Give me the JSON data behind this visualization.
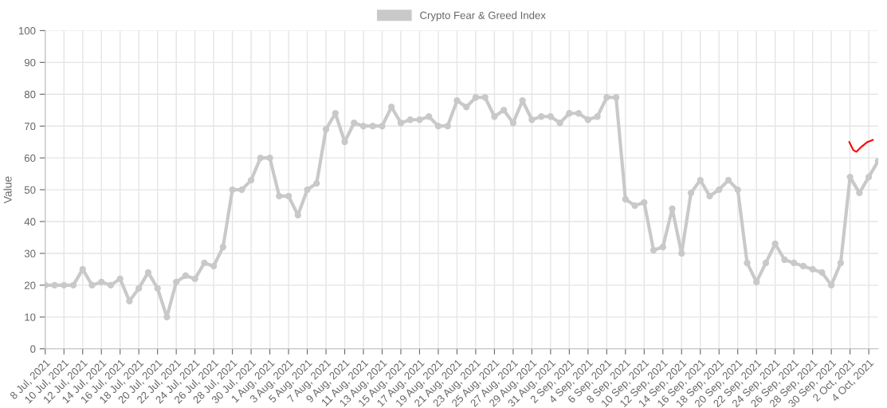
{
  "chart_data": {
    "type": "line",
    "ylabel": "Value",
    "categories": [
      "8 Jul, 2021",
      null,
      "10 Jul, 2021",
      null,
      "12 Jul, 2021",
      null,
      "14 Jul, 2021",
      null,
      "16 Jul, 2021",
      null,
      "18 Jul, 2021",
      null,
      "20 Jul, 2021",
      null,
      "22 Jul, 2021",
      null,
      "24 Jul, 2021",
      null,
      "26 Jul, 2021",
      null,
      "28 Jul, 2021",
      null,
      "30 Jul, 2021",
      null,
      "1 Aug, 2021",
      null,
      "3 Aug, 2021",
      null,
      "5 Aug, 2021",
      null,
      "7 Aug, 2021",
      null,
      "9 Aug, 2021",
      null,
      "11 Aug, 2021",
      null,
      "13 Aug, 2021",
      null,
      "15 Aug, 2021",
      null,
      "17 Aug, 2021",
      null,
      "19 Aug, 2021",
      null,
      "21 Aug, 2021",
      null,
      "23 Aug, 2021",
      null,
      "25 Aug, 2021",
      null,
      "27 Aug, 2021",
      null,
      "29 Aug, 2021",
      null,
      "31 Aug, 2021",
      null,
      "2 Sep, 2021",
      null,
      "4 Sep, 2021",
      null,
      "6 Sep, 2021",
      null,
      "8 Sep, 2021",
      null,
      "10 Sep, 2021",
      null,
      "12 Sep, 2021",
      null,
      "14 Sep, 2021",
      null,
      "16 Sep, 2021",
      null,
      "18 Sep, 2021",
      null,
      "20 Sep, 2021",
      null,
      "22 Sep, 2021",
      null,
      "24 Sep, 2021",
      null,
      "26 Sep, 2021",
      null,
      "28 Sep, 2021",
      null,
      "30 Sep, 2021",
      null,
      "2 Oct, 2021",
      null,
      "4 Oct, 2021",
      null
    ],
    "series": [
      {
        "name": "Crypto Fear & Greed Index",
        "color": "#c9c9c9",
        "values": [
          20,
          20,
          20,
          20,
          25,
          20,
          21,
          20,
          22,
          15,
          19,
          24,
          19,
          10,
          21,
          23,
          22,
          27,
          26,
          32,
          50,
          50,
          53,
          60,
          60,
          48,
          48,
          42,
          50,
          52,
          69,
          74,
          65,
          71,
          70,
          70,
          70,
          76,
          71,
          72,
          72,
          73,
          70,
          70,
          78,
          76,
          79,
          79,
          73,
          75,
          71,
          78,
          72,
          73,
          73,
          71,
          74,
          74,
          72,
          73,
          79,
          79,
          47,
          45,
          46,
          31,
          32,
          44,
          30,
          49,
          53,
          48,
          50,
          53,
          50,
          27,
          21,
          27,
          33,
          28,
          27,
          26,
          25,
          24,
          20,
          27,
          54,
          49,
          54,
          59
        ]
      }
    ],
    "ylim": [
      0,
      100
    ],
    "yticks": [
      0,
      10,
      20,
      30,
      40,
      50,
      60,
      70,
      80,
      90,
      100
    ],
    "grid": true,
    "legend": "top",
    "marker": "circle",
    "line_style": "solid"
  }
}
